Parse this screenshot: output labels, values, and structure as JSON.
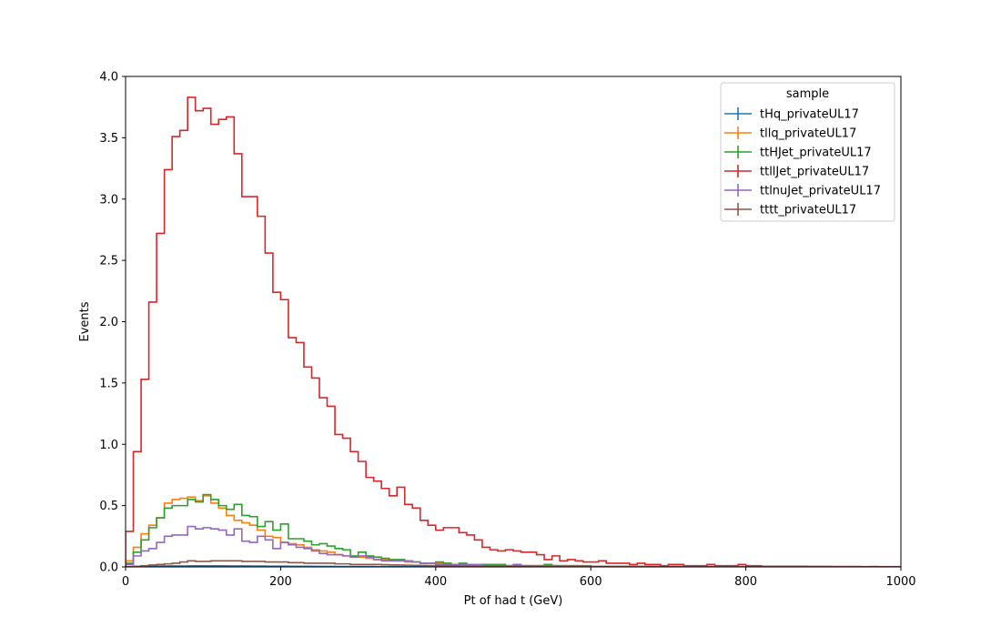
{
  "chart_data": {
    "type": "line",
    "style": "step-histogram",
    "xlabel": "Pt of had t (GeV)",
    "ylabel": "Events",
    "xlim": [
      0,
      1000
    ],
    "ylim": [
      0,
      4.0
    ],
    "x_ticks": [
      "0",
      "200",
      "400",
      "600",
      "800",
      "1000"
    ],
    "y_ticks": [
      "0.0",
      "0.5",
      "1.0",
      "1.5",
      "2.0",
      "2.5",
      "3.0",
      "3.5",
      "4.0"
    ],
    "grid": false,
    "legend_title": "sample",
    "legend_position": "top-right",
    "bin_width": 10,
    "series": [
      {
        "name": "tHq_privateUL17",
        "color": "#1f77b4",
        "values": [
          0.002,
          0.004,
          0.005,
          0.006,
          0.007,
          0.008,
          0.008,
          0.008,
          0.009,
          0.009,
          0.009,
          0.009,
          0.009,
          0.008,
          0.008,
          0.008,
          0.007,
          0.007,
          0.006,
          0.006,
          0.006,
          0.005,
          0.005,
          0.005,
          0.004,
          0.004,
          0.004,
          0.003,
          0.003,
          0.003,
          0.003,
          0.003,
          0.002,
          0.002,
          0.002,
          0.002,
          0.002,
          0.002,
          0.002,
          0.001,
          0.001,
          0.001,
          0.001,
          0.001,
          0.001,
          0.001,
          0.001,
          0.001,
          0.001,
          0.001,
          0.001,
          0.001,
          0.001,
          0.001,
          0.001,
          0.001,
          0.001,
          0.001,
          0.001,
          0.001,
          0,
          0,
          0,
          0,
          0,
          0,
          0,
          0,
          0,
          0,
          0,
          0,
          0,
          0,
          0,
          0,
          0,
          0,
          0,
          0,
          0,
          0,
          0,
          0,
          0,
          0,
          0,
          0,
          0,
          0,
          0,
          0,
          0,
          0,
          0,
          0,
          0,
          0,
          0,
          0
        ]
      },
      {
        "name": "tllq_privateUL17",
        "color": "#ff7f0e",
        "values": [
          0.05,
          0.16,
          0.27,
          0.34,
          0.4,
          0.52,
          0.55,
          0.56,
          0.57,
          0.54,
          0.58,
          0.52,
          0.48,
          0.42,
          0.38,
          0.36,
          0.34,
          0.3,
          0.25,
          0.24,
          0.2,
          0.19,
          0.18,
          0.16,
          0.14,
          0.13,
          0.12,
          0.1,
          0.09,
          0.08,
          0.08,
          0.07,
          0.06,
          0.06,
          0.05,
          0.05,
          0.04,
          0.04,
          0.03,
          0.03,
          0.03,
          0.03,
          0.02,
          0.02,
          0.02,
          0.02,
          0.02,
          0.02,
          0.01,
          0.01,
          0.01,
          0.01,
          0.01,
          0.01,
          0.01,
          0.01,
          0.01,
          0.01,
          0.01,
          0.005,
          0.005,
          0.005,
          0.005,
          0.005,
          0.005,
          0.004,
          0.004,
          0.004,
          0.003,
          0.003,
          0.003,
          0.003,
          0.002,
          0.002,
          0.002,
          0.002,
          0.002,
          0.002,
          0.002,
          0.002,
          0.001,
          0.001,
          0.001,
          0.001,
          0.001,
          0.001,
          0.001,
          0.001,
          0.001,
          0.001,
          0.001,
          0.001,
          0.001,
          0.001,
          0.001,
          0.001,
          0.001,
          0.001,
          0.001,
          0.001
        ]
      },
      {
        "name": "ttHJet_privateUL17",
        "color": "#2ca02c",
        "values": [
          0.03,
          0.12,
          0.22,
          0.32,
          0.4,
          0.48,
          0.5,
          0.5,
          0.55,
          0.53,
          0.59,
          0.55,
          0.5,
          0.47,
          0.51,
          0.42,
          0.41,
          0.33,
          0.37,
          0.3,
          0.35,
          0.23,
          0.23,
          0.21,
          0.18,
          0.19,
          0.17,
          0.15,
          0.14,
          0.09,
          0.12,
          0.09,
          0.08,
          0.07,
          0.06,
          0.06,
          0.05,
          0.04,
          0.03,
          0.03,
          0.04,
          0.03,
          0.02,
          0.03,
          0.02,
          0.02,
          0.02,
          0.02,
          0.02,
          0.01,
          0.01,
          0.01,
          0.01,
          0.01,
          0.02,
          0.01,
          0.01,
          0.01,
          0.01,
          0.01,
          0.005,
          0.005,
          0.005,
          0.005,
          0.005,
          0.005,
          0.005,
          0.004,
          0.004,
          0.003,
          0.003,
          0.003,
          0.003,
          0.002,
          0.002,
          0.002,
          0.002,
          0.002,
          0.002,
          0.002,
          0.001,
          0.001,
          0.001,
          0.001,
          0.001,
          0.001,
          0.001,
          0.001,
          0.001,
          0.001,
          0.001,
          0.001,
          0.001,
          0.001,
          0.001,
          0.001,
          0.001,
          0.001,
          0.001,
          0.001
        ]
      },
      {
        "name": "ttllJet_privateUL17",
        "color": "#d62728",
        "values": [
          0.29,
          0.94,
          1.53,
          2.16,
          2.72,
          3.24,
          3.51,
          3.56,
          3.83,
          3.72,
          3.74,
          3.61,
          3.65,
          3.67,
          3.37,
          3.02,
          3.02,
          2.86,
          2.56,
          2.24,
          2.18,
          1.87,
          1.83,
          1.63,
          1.54,
          1.38,
          1.31,
          1.08,
          1.05,
          0.94,
          0.86,
          0.73,
          0.7,
          0.64,
          0.58,
          0.65,
          0.51,
          0.48,
          0.38,
          0.34,
          0.3,
          0.32,
          0.32,
          0.28,
          0.26,
          0.22,
          0.16,
          0.14,
          0.13,
          0.14,
          0.13,
          0.12,
          0.12,
          0.1,
          0.06,
          0.09,
          0.05,
          0.06,
          0.05,
          0.04,
          0.04,
          0.05,
          0.03,
          0.03,
          0.03,
          0.02,
          0.03,
          0.02,
          0.02,
          0.01,
          0.02,
          0.02,
          0.01,
          0.01,
          0.01,
          0.02,
          0.01,
          0.01,
          0.01,
          0.02,
          0.01,
          0.01,
          0.005,
          0.005,
          0.005,
          0.005,
          0.005,
          0.005,
          0.004,
          0.004,
          0.004,
          0.003,
          0.003,
          0.003,
          0.003,
          0.002,
          0.003,
          0.002,
          0.002,
          0.002
        ]
      },
      {
        "name": "ttlnuJet_privateUL17",
        "color": "#9467bd",
        "values": [
          0.02,
          0.09,
          0.13,
          0.15,
          0.2,
          0.25,
          0.26,
          0.26,
          0.33,
          0.31,
          0.32,
          0.31,
          0.3,
          0.26,
          0.31,
          0.21,
          0.2,
          0.25,
          0.22,
          0.15,
          0.2,
          0.18,
          0.16,
          0.15,
          0.13,
          0.11,
          0.1,
          0.1,
          0.09,
          0.08,
          0.09,
          0.08,
          0.06,
          0.05,
          0.05,
          0.05,
          0.05,
          0.04,
          0.03,
          0.03,
          0.02,
          0.02,
          0.02,
          0.02,
          0.02,
          0.02,
          0.01,
          0.01,
          0.01,
          0.01,
          0.02,
          0.01,
          0.01,
          0.01,
          0.01,
          0.01,
          0.01,
          0.005,
          0.005,
          0.005,
          0.005,
          0.005,
          0.005,
          0.005,
          0.004,
          0.004,
          0.004,
          0.003,
          0.003,
          0.003,
          0.003,
          0.002,
          0.002,
          0.002,
          0.002,
          0.002,
          0.002,
          0.002,
          0.002,
          0.001,
          0.001,
          0.001,
          0.001,
          0.001,
          0.001,
          0.001,
          0.001,
          0.001,
          0.001,
          0.001,
          0.001,
          0.001,
          0.001,
          0.001,
          0.001,
          0.001,
          0.001,
          0.001,
          0.001,
          0.001
        ]
      },
      {
        "name": "tttt_privateUL17",
        "color": "#8c564b",
        "values": [
          0.002,
          0.005,
          0.01,
          0.015,
          0.02,
          0.025,
          0.03,
          0.04,
          0.05,
          0.045,
          0.045,
          0.05,
          0.05,
          0.05,
          0.05,
          0.045,
          0.045,
          0.045,
          0.04,
          0.04,
          0.04,
          0.035,
          0.035,
          0.03,
          0.03,
          0.03,
          0.03,
          0.025,
          0.025,
          0.02,
          0.02,
          0.02,
          0.02,
          0.018,
          0.016,
          0.015,
          0.014,
          0.013,
          0.012,
          0.011,
          0.01,
          0.01,
          0.009,
          0.008,
          0.008,
          0.007,
          0.007,
          0.006,
          0.006,
          0.005,
          0.005,
          0.005,
          0.004,
          0.004,
          0.004,
          0.004,
          0.003,
          0.003,
          0.003,
          0.003,
          0.003,
          0.003,
          0.002,
          0.002,
          0.002,
          0.002,
          0.002,
          0.002,
          0.002,
          0.002,
          0.002,
          0.001,
          0.001,
          0.001,
          0.001,
          0.001,
          0.001,
          0.001,
          0.001,
          0.001,
          0.001,
          0.001,
          0.001,
          0.001,
          0.001,
          0.001,
          0.001,
          0.001,
          0.001,
          0.001,
          0.001,
          0.001,
          0.001,
          0.001,
          0.001,
          0.001,
          0.001,
          0.001,
          0.001,
          0.001
        ]
      }
    ]
  }
}
